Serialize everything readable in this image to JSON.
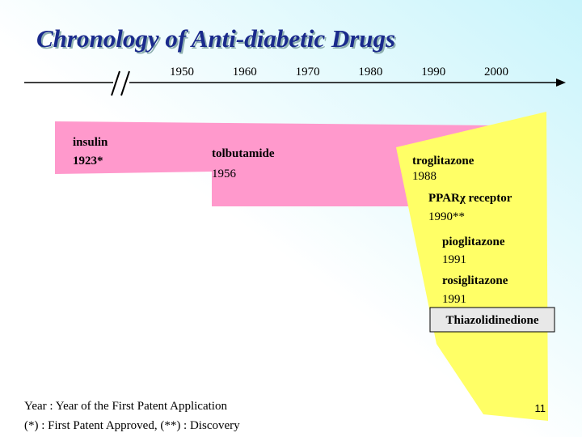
{
  "title": "Chronology of Anti-diabetic Drugs",
  "timeline": {
    "years": [
      "1950",
      "1960",
      "1970",
      "1980",
      "1990",
      "2000"
    ]
  },
  "events": [
    {
      "label": "insulin",
      "year": "1923*"
    },
    {
      "label": "tolbutamide",
      "year": "1956"
    },
    {
      "label": "troglitazone",
      "year": "1988"
    },
    {
      "label": "PPARχ receptor",
      "year": "1990**"
    },
    {
      "label": "pioglitazone",
      "year": "1991"
    },
    {
      "label": "rosiglitazone",
      "year": "1991"
    }
  ],
  "group_label": "Thiazolidinedione",
  "footnotes": [
    "Year : Year of the First Patent Application",
    "(*) : First Patent Approved, (**) : Discovery"
  ],
  "page_number": "11"
}
